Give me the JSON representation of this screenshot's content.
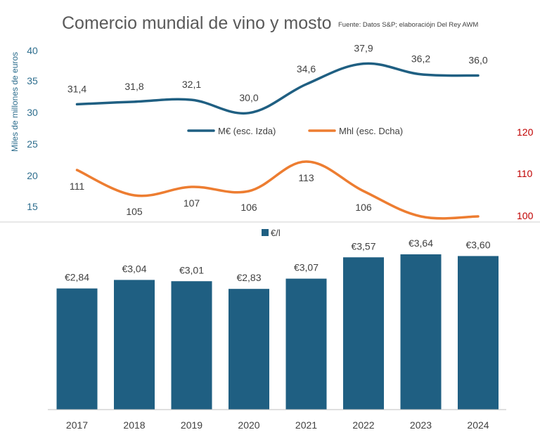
{
  "title": "Comercio mundial de vino y mosto",
  "source": "Fuente: Datos S&P; elaboracióјn Del Rey AWM",
  "colors": {
    "eur": "#1F5F82",
    "mhl": "#ED7D31",
    "bar": "#1F5F82",
    "right_axis": "#C00000"
  },
  "chart_data": [
    {
      "type": "line",
      "x": [
        "2017",
        "2018",
        "2019",
        "2020",
        "2021",
        "2022",
        "2023",
        "2024"
      ],
      "ylabel": "Miles de millones de euros",
      "ylim": [
        15,
        40
      ],
      "y_ticks": [
        "40",
        "35",
        "30",
        "25",
        "20",
        "15"
      ],
      "y2lim": [
        100,
        120
      ],
      "y2_ticks": [
        "120",
        "110",
        "100"
      ],
      "legend": "center",
      "series": [
        {
          "name": "M€ (esc. Izda)",
          "axis": "left",
          "values": [
            31.4,
            31.8,
            32.1,
            30.0,
            34.6,
            37.9,
            36.2,
            36.0
          ],
          "labels": [
            "31,4",
            "31,8",
            "32,1",
            "30,0",
            "34,6",
            "37,9",
            "36,2",
            "36,0"
          ]
        },
        {
          "name": "Mhl (esc. Dcha)",
          "axis": "right",
          "values": [
            111,
            105,
            107,
            106,
            113,
            106,
            100,
            100
          ],
          "labels": [
            "111",
            "105",
            "107",
            "106",
            "113",
            "106",
            "",
            ""
          ]
        }
      ]
    },
    {
      "type": "bar",
      "categories": [
        "2017",
        "2018",
        "2019",
        "2020",
        "2021",
        "2022",
        "2023",
        "2024"
      ],
      "series": [
        {
          "name": "€/l",
          "values": [
            2.84,
            3.04,
            3.01,
            2.83,
            3.07,
            3.57,
            3.64,
            3.6
          ],
          "labels": [
            "€2,84",
            "€3,04",
            "€3,01",
            "€2,83",
            "€3,07",
            "€3,57",
            "€3,64",
            "€3,60"
          ]
        }
      ],
      "legend": "top-center"
    }
  ]
}
